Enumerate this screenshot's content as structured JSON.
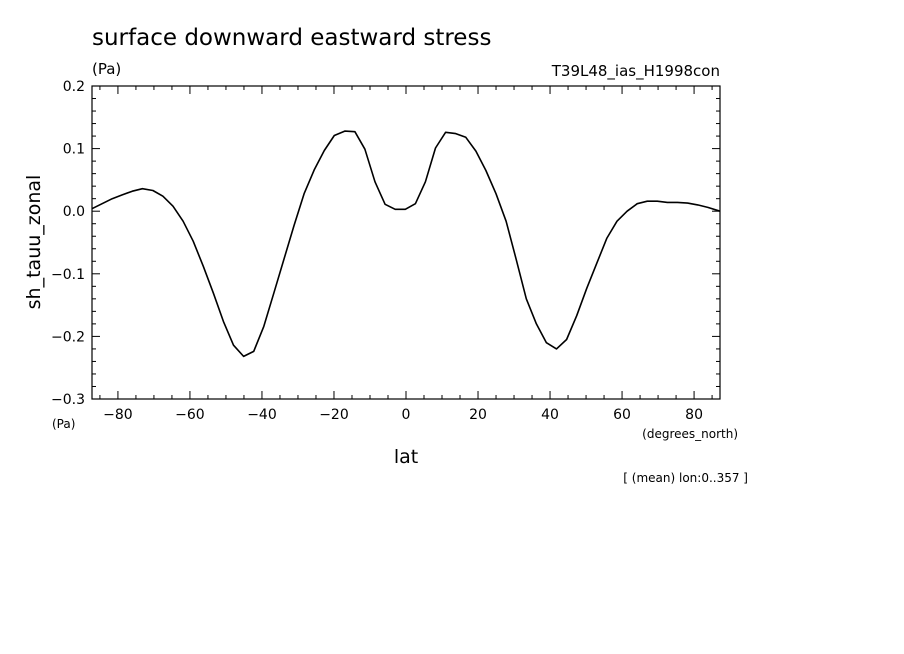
{
  "chart_data": {
    "type": "line",
    "title": "surface downward eastward stress",
    "units": "(Pa)",
    "run_label": "T39L48_ias_H1998con",
    "ylabel": "sh_tauu_zonal",
    "y_units": "(Pa)",
    "xlabel": "lat",
    "x_units": "(degrees_north)",
    "footnote": "[ (mean) lon:0..357 ]",
    "xlim": [
      -87.2,
      87.2
    ],
    "ylim": [
      -0.3,
      0.2
    ],
    "xticks": [
      -80,
      -60,
      -40,
      -20,
      0,
      20,
      40,
      60,
      80
    ],
    "xtick_labels": [
      "−80",
      "−60",
      "−40",
      "−20",
      "0",
      "20",
      "40",
      "60",
      "80"
    ],
    "yticks": [
      0.2,
      0.1,
      0.0,
      -0.1,
      -0.2,
      -0.3
    ],
    "ytick_labels": [
      "0.2",
      "0.1",
      "0.0",
      "−0.1",
      "−0.2",
      "−0.3"
    ],
    "grid": false,
    "line_color": "#000000",
    "series": [
      {
        "x": [
          -87.2,
          -84.4,
          -81.6,
          -78.8,
          -76.0,
          -73.2,
          -70.3,
          -67.5,
          -64.7,
          -61.9,
          -59.1,
          -56.3,
          -53.5,
          -50.7,
          -47.9,
          -45.1,
          -42.3,
          -39.5,
          -36.7,
          -33.9,
          -31.1,
          -28.3,
          -25.5,
          -22.7,
          -19.9,
          -17.0,
          -14.2,
          -11.4,
          -8.6,
          -5.8,
          -3.0,
          -0.2,
          2.6,
          5.4,
          8.2,
          11.0,
          13.8,
          16.6,
          19.4,
          22.2,
          25.0,
          27.8,
          30.6,
          33.4,
          36.2,
          39.0,
          41.8,
          44.6,
          47.4,
          50.2,
          53.0,
          55.8,
          58.6,
          61.4,
          64.2,
          67.0,
          69.8,
          72.6,
          75.4,
          78.2,
          81.0,
          83.8,
          87.2
        ],
        "y": [
          0.004,
          0.012,
          0.02,
          0.026,
          0.032,
          0.036,
          0.033,
          0.024,
          0.008,
          -0.016,
          -0.048,
          -0.088,
          -0.131,
          -0.176,
          -0.214,
          -0.232,
          -0.224,
          -0.184,
          -0.131,
          -0.077,
          -0.023,
          0.028,
          0.066,
          0.097,
          0.121,
          0.128,
          0.127,
          0.099,
          0.047,
          0.011,
          0.003,
          0.003,
          0.012,
          0.047,
          0.101,
          0.126,
          0.124,
          0.118,
          0.096,
          0.065,
          0.028,
          -0.016,
          -0.077,
          -0.14,
          -0.18,
          -0.21,
          -0.22,
          -0.205,
          -0.167,
          -0.123,
          -0.083,
          -0.043,
          -0.016,
          0.0,
          0.012,
          0.016,
          0.016,
          0.014,
          0.014,
          0.013,
          0.01,
          0.006,
          0.0
        ]
      }
    ]
  }
}
